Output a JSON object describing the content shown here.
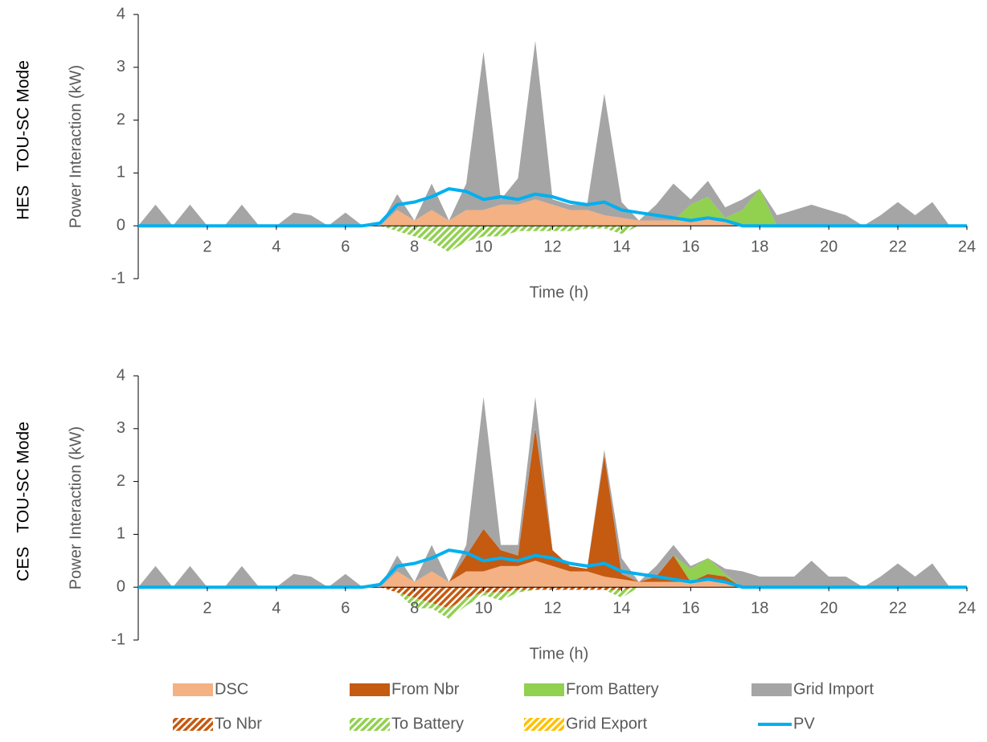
{
  "chart_data": [
    {
      "type": "area",
      "row_label": "HES   TOU-SC Mode",
      "x_label": "Time (h)",
      "y_label": "Power Interaction (kW)",
      "xlim": [
        0,
        24
      ],
      "xticks": [
        2,
        4,
        6,
        8,
        10,
        12,
        14,
        16,
        18,
        20,
        22,
        24
      ],
      "ylim": [
        -1,
        4
      ],
      "yticks": [
        -1,
        0,
        1,
        2,
        3,
        4
      ],
      "x": [
        0,
        0.5,
        1,
        1.5,
        2,
        2.5,
        3,
        3.5,
        4,
        4.5,
        5,
        5.5,
        6,
        6.5,
        7,
        7.5,
        8,
        8.5,
        9,
        9.5,
        10,
        10.5,
        11,
        11.5,
        12,
        12.5,
        13,
        13.5,
        14,
        14.5,
        15,
        15.5,
        16,
        16.5,
        17,
        17.5,
        18,
        18.5,
        19,
        19.5,
        20,
        20.5,
        21,
        21.5,
        22,
        22.5,
        23,
        23.5,
        24
      ],
      "series": [
        {
          "name": "DSC",
          "color": "#f4b183",
          "mark": "area",
          "values": [
            0,
            0,
            0,
            0,
            0,
            0,
            0,
            0,
            0,
            0,
            0,
            0,
            0,
            0,
            0,
            0.3,
            0.1,
            0.3,
            0.1,
            0.3,
            0.3,
            0.4,
            0.4,
            0.5,
            0.4,
            0.3,
            0.3,
            0.2,
            0.15,
            0.1,
            0.1,
            0.1,
            0.1,
            0.15,
            0.1,
            0,
            0,
            0,
            0,
            0,
            0,
            0,
            0,
            0,
            0,
            0,
            0,
            0,
            0
          ]
        },
        {
          "name": "From Battery",
          "color": "#92d050",
          "mark": "area",
          "values": [
            0,
            0,
            0,
            0,
            0,
            0,
            0,
            0,
            0,
            0,
            0,
            0,
            0,
            0,
            0,
            0,
            0,
            0,
            0,
            0,
            0,
            0,
            0,
            0,
            0,
            0,
            0,
            0,
            0,
            0,
            0,
            0,
            0.3,
            0.4,
            0.05,
            0.3,
            0.7,
            0,
            0,
            0,
            0,
            0,
            0,
            0,
            0,
            0,
            0,
            0,
            0
          ]
        },
        {
          "name": "Grid Import",
          "color": "#a5a5a5",
          "mark": "area",
          "values": [
            0,
            0.4,
            0,
            0.4,
            0,
            0,
            0.4,
            0,
            0,
            0.25,
            0.2,
            0,
            0.25,
            0,
            0,
            0.3,
            0,
            0.5,
            0,
            0.5,
            3.0,
            0.1,
            0.5,
            3.0,
            0.1,
            0.1,
            0.1,
            2.3,
            0.3,
            0,
            0.3,
            0.7,
            0.1,
            0.3,
            0.2,
            0.2,
            0,
            0.2,
            0.3,
            0.4,
            0.3,
            0.2,
            0,
            0.2,
            0.45,
            0.2,
            0.45,
            0,
            0
          ]
        },
        {
          "name": "To Battery",
          "color": "#92d050",
          "mark": "area",
          "pattern": "hatch",
          "values": [
            0,
            0,
            0,
            0,
            0,
            0,
            0,
            0,
            0,
            0,
            0,
            0,
            0,
            0,
            0,
            -0.1,
            -0.2,
            -0.3,
            -0.5,
            -0.3,
            -0.2,
            -0.2,
            -0.1,
            -0.1,
            -0.1,
            -0.1,
            -0.05,
            -0.05,
            -0.15,
            0,
            0,
            0,
            0,
            0,
            0,
            0,
            0,
            0,
            0,
            0,
            0,
            0,
            0,
            0,
            0,
            0,
            0,
            0,
            0
          ]
        },
        {
          "name": "PV",
          "color": "#00b0f0",
          "mark": "line",
          "values": [
            0,
            0,
            0,
            0,
            0,
            0,
            0,
            0,
            0,
            0,
            0,
            0,
            0,
            0,
            0.05,
            0.4,
            0.45,
            0.55,
            0.7,
            0.65,
            0.5,
            0.55,
            0.5,
            0.6,
            0.55,
            0.45,
            0.4,
            0.45,
            0.3,
            0.25,
            0.2,
            0.15,
            0.1,
            0.15,
            0.1,
            0,
            0,
            0,
            0,
            0,
            0,
            0,
            0,
            0,
            0,
            0,
            0,
            0,
            0
          ]
        }
      ]
    },
    {
      "type": "area",
      "row_label": "CES   TOU-SC Mode",
      "x_label": "Time (h)",
      "y_label": "Power Interaction (kW)",
      "xlim": [
        0,
        24
      ],
      "xticks": [
        2,
        4,
        6,
        8,
        10,
        12,
        14,
        16,
        18,
        20,
        22,
        24
      ],
      "ylim": [
        -1,
        4
      ],
      "yticks": [
        -1,
        0,
        1,
        2,
        3,
        4
      ],
      "x": [
        0,
        0.5,
        1,
        1.5,
        2,
        2.5,
        3,
        3.5,
        4,
        4.5,
        5,
        5.5,
        6,
        6.5,
        7,
        7.5,
        8,
        8.5,
        9,
        9.5,
        10,
        10.5,
        11,
        11.5,
        12,
        12.5,
        13,
        13.5,
        14,
        14.5,
        15,
        15.5,
        16,
        16.5,
        17,
        17.5,
        18,
        18.5,
        19,
        19.5,
        20,
        20.5,
        21,
        21.5,
        22,
        22.5,
        23,
        23.5,
        24
      ],
      "series": [
        {
          "name": "DSC",
          "color": "#f4b183",
          "mark": "area",
          "values": [
            0,
            0,
            0,
            0,
            0,
            0,
            0,
            0,
            0,
            0,
            0,
            0,
            0,
            0,
            0,
            0.3,
            0.1,
            0.3,
            0.1,
            0.3,
            0.3,
            0.4,
            0.4,
            0.5,
            0.4,
            0.3,
            0.3,
            0.2,
            0.15,
            0.1,
            0.1,
            0.1,
            0.1,
            0.15,
            0.1,
            0,
            0,
            0,
            0,
            0,
            0,
            0,
            0,
            0,
            0,
            0,
            0,
            0,
            0
          ]
        },
        {
          "name": "From Nbr",
          "color": "#c55a11",
          "mark": "area",
          "values": [
            0,
            0,
            0,
            0,
            0,
            0,
            0,
            0,
            0,
            0,
            0,
            0,
            0,
            0,
            0,
            0,
            0,
            0,
            0,
            0.3,
            0.8,
            0.3,
            0.2,
            2.5,
            0.3,
            0.1,
            0.05,
            2.3,
            0.1,
            0,
            0.1,
            0.5,
            0,
            0.1,
            0.1,
            0,
            0,
            0,
            0,
            0,
            0,
            0,
            0,
            0,
            0,
            0,
            0,
            0,
            0
          ]
        },
        {
          "name": "From Battery",
          "color": "#92d050",
          "mark": "area",
          "values": [
            0,
            0,
            0,
            0,
            0,
            0,
            0,
            0,
            0,
            0,
            0,
            0,
            0,
            0,
            0,
            0,
            0,
            0,
            0,
            0,
            0,
            0,
            0,
            0,
            0,
            0,
            0,
            0,
            0,
            0,
            0,
            0,
            0.25,
            0.3,
            0.05,
            0,
            0,
            0,
            0,
            0,
            0,
            0,
            0,
            0,
            0,
            0,
            0,
            0,
            0
          ]
        },
        {
          "name": "Grid Import",
          "color": "#a5a5a5",
          "mark": "area",
          "values": [
            0,
            0.4,
            0,
            0.4,
            0,
            0,
            0.4,
            0,
            0,
            0.25,
            0.2,
            0,
            0.25,
            0,
            0,
            0.3,
            0,
            0.5,
            0,
            0.2,
            2.5,
            0.1,
            0.2,
            0.6,
            0,
            0,
            0,
            0.1,
            0.3,
            0,
            0.2,
            0.2,
            0.05,
            0,
            0.1,
            0.3,
            0.2,
            0.2,
            0.2,
            0.5,
            0.2,
            0.2,
            0,
            0.2,
            0.45,
            0.2,
            0.45,
            0,
            0
          ]
        },
        {
          "name": "To Nbr",
          "color": "#c55a11",
          "mark": "area",
          "pattern": "hatch",
          "values": [
            0,
            0,
            0,
            0,
            0,
            0,
            0,
            0,
            0,
            0,
            0,
            0,
            0,
            0,
            0,
            -0.1,
            -0.2,
            -0.3,
            -0.4,
            -0.2,
            -0.1,
            -0.1,
            -0.05,
            -0.05,
            -0.05,
            -0.05,
            -0.05,
            -0.05,
            -0.05,
            0,
            0,
            0,
            0,
            0,
            0,
            0,
            0,
            0,
            0,
            0,
            0,
            0,
            0,
            0,
            0,
            0,
            0,
            0,
            0
          ]
        },
        {
          "name": "To Battery",
          "color": "#92d050",
          "mark": "area",
          "pattern": "hatch",
          "values": [
            0,
            0,
            0,
            0,
            0,
            0,
            0,
            0,
            0,
            0,
            0,
            0,
            0,
            0,
            0,
            0,
            -0.2,
            -0.1,
            -0.2,
            -0.15,
            -0.05,
            -0.15,
            -0.05,
            0,
            0,
            0,
            0,
            0,
            -0.15,
            0,
            0,
            0,
            0,
            0,
            0,
            0,
            0,
            0,
            0,
            0,
            0,
            0,
            0,
            0,
            0,
            0,
            0,
            0,
            0
          ]
        },
        {
          "name": "Grid Export",
          "color": "#ffc000",
          "mark": "area",
          "pattern": "hatch",
          "values": [
            0,
            0,
            0,
            0,
            0,
            0,
            0,
            0,
            0,
            0,
            0,
            0,
            0,
            0,
            0,
            0,
            0,
            0,
            0,
            0,
            0,
            0,
            0,
            0,
            0,
            0,
            0,
            0,
            0,
            0,
            0,
            0,
            0,
            0,
            0,
            0,
            0,
            0,
            0,
            0,
            0,
            0,
            0,
            0,
            0,
            0,
            0,
            0,
            0
          ]
        },
        {
          "name": "PV",
          "color": "#00b0f0",
          "mark": "line",
          "values": [
            0,
            0,
            0,
            0,
            0,
            0,
            0,
            0,
            0,
            0,
            0,
            0,
            0,
            0,
            0.05,
            0.4,
            0.45,
            0.55,
            0.7,
            0.65,
            0.5,
            0.55,
            0.5,
            0.6,
            0.55,
            0.45,
            0.4,
            0.45,
            0.3,
            0.25,
            0.2,
            0.15,
            0.1,
            0.15,
            0.1,
            0,
            0,
            0,
            0,
            0,
            0,
            0,
            0,
            0,
            0,
            0,
            0,
            0,
            0
          ]
        }
      ]
    }
  ]
}
